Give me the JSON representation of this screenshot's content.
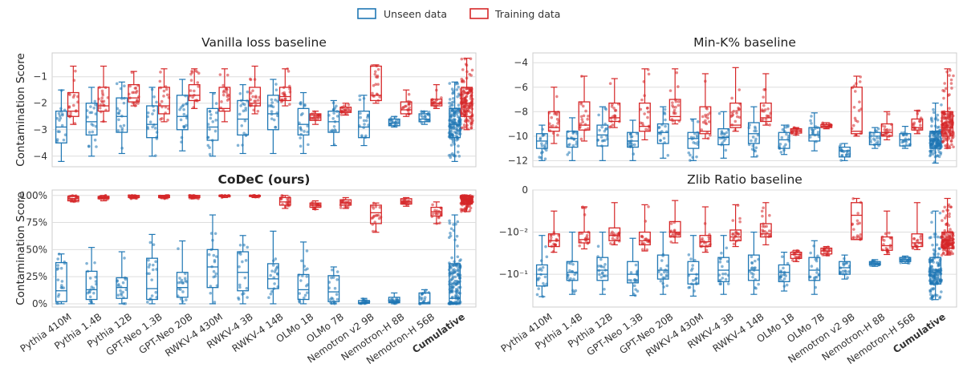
{
  "legend": {
    "unseen_label": "Unseen data",
    "training_label": "Training data",
    "colors": {
      "unseen": "#1f77b4",
      "training": "#d62728"
    }
  },
  "models": [
    "Pythia 410M",
    "Pythia 1.4B",
    "Pythia 12B",
    "GPT-Neo 1.3B",
    "GPT-Neo 20B",
    "RWKV-4 430M",
    "RWKV-4 3B",
    "RWKV-4 14B",
    "OLMo 1B",
    "OLMo 7B",
    "Nemotron v2 9B",
    "Nemotron-H 8B",
    "Nemotron-H 56B",
    "Cumulative"
  ],
  "chart_data": [
    {
      "type": "box",
      "title": "Vanilla loss baseline",
      "title_bold": false,
      "ylabel": "Contamination Score",
      "scale": "linear",
      "ylim": [
        -4.4,
        -0.1
      ],
      "yticks": [
        -4,
        -3,
        -2,
        -1
      ],
      "ytick_labels": [
        "−4",
        "−3",
        "−2",
        "−1"
      ],
      "categories": [
        "Pythia 410M",
        "Pythia 1.4B",
        "Pythia 12B",
        "GPT-Neo 1.3B",
        "GPT-Neo 20B",
        "RWKV-4 430M",
        "RWKV-4 3B",
        "RWKV-4 14B",
        "OLMo 1B",
        "OLMo 7B",
        "Nemotron v2 9B",
        "Nemotron-H 8B",
        "Nemotron-H 56B",
        "Cumulative"
      ],
      "series": [
        {
          "name": "Unseen data",
          "stats": [
            [
              -4.2,
              -3.5,
              -2.9,
              -2.3,
              -1.5
            ],
            [
              -4.0,
              -3.2,
              -2.7,
              -2.0,
              -1.4
            ],
            [
              -3.9,
              -3.1,
              -2.5,
              -1.8,
              -1.2
            ],
            [
              -4.0,
              -3.3,
              -2.8,
              -2.1,
              -1.4
            ],
            [
              -3.8,
              -3.0,
              -2.5,
              -1.7,
              -1.1
            ],
            [
              -4.0,
              -3.4,
              -2.9,
              -2.2,
              -1.6
            ],
            [
              -3.9,
              -3.2,
              -2.6,
              -1.9,
              -1.3
            ],
            [
              -3.9,
              -3.0,
              -2.4,
              -1.7,
              -1.1
            ],
            [
              -3.9,
              -3.2,
              -2.8,
              -2.2,
              -1.6
            ],
            [
              -3.6,
              -3.1,
              -2.7,
              -2.3,
              -1.9
            ],
            [
              -3.6,
              -3.3,
              -2.9,
              -2.3,
              -1.7
            ],
            [
              -2.9,
              -2.85,
              -2.75,
              -2.6,
              -2.5
            ],
            [
              -2.8,
              -2.7,
              -2.6,
              -2.4,
              -2.3
            ],
            [
              -4.2,
              -3.3,
              -2.8,
              -2.2,
              -1.2
            ]
          ]
        },
        {
          "name": "Training data",
          "stats": [
            [
              -2.8,
              -2.5,
              -2.3,
              -1.6,
              -0.6
            ],
            [
              -2.7,
              -2.3,
              -2.1,
              -1.4,
              -0.6
            ],
            [
              -2.1,
              -1.95,
              -1.8,
              -1.3,
              -0.8
            ],
            [
              -2.7,
              -2.4,
              -2.1,
              -1.4,
              -0.7
            ],
            [
              -2.2,
              -1.9,
              -1.7,
              -1.3,
              -0.7
            ],
            [
              -2.7,
              -2.3,
              -2.2,
              -1.4,
              -0.7
            ],
            [
              -2.4,
              -2.1,
              -2.0,
              -1.4,
              -0.6
            ],
            [
              -2.1,
              -1.9,
              -1.75,
              -1.4,
              -0.7
            ],
            [
              -2.8,
              -2.65,
              -2.55,
              -2.4,
              -2.3
            ],
            [
              -2.45,
              -2.35,
              -2.3,
              -2.15,
              -2.0
            ],
            [
              -2.0,
              -1.9,
              -1.7,
              -0.6,
              -0.55
            ],
            [
              -2.5,
              -2.4,
              -2.25,
              -1.95,
              -1.5
            ],
            [
              -2.2,
              -2.1,
              -2.0,
              -1.85,
              -1.3
            ],
            [
              -3.0,
              -2.5,
              -2.0,
              -1.4,
              -0.3
            ]
          ]
        }
      ]
    },
    {
      "type": "box",
      "title": "Min-K% baseline",
      "title_bold": false,
      "ylabel": "",
      "scale": "linear",
      "ylim": [
        -12.5,
        -3.2
      ],
      "yticks": [
        -12,
        -10,
        -8,
        -6,
        -4
      ],
      "ytick_labels": [
        "−12",
        "−10",
        "−8",
        "−6",
        "−4"
      ],
      "categories": [
        "Pythia 410M",
        "Pythia 1.4B",
        "Pythia 12B",
        "GPT-Neo 1.3B",
        "GPT-Neo 20B",
        "RWKV-4 430M",
        "RWKV-4 3B",
        "RWKV-4 14B",
        "OLMo 1B",
        "OLMo 7B",
        "Nemotron v2 9B",
        "Nemotron-H 8B",
        "Nemotron-H 56B",
        "Cumulative"
      ],
      "series": [
        {
          "name": "Unseen data",
          "stats": [
            [
              -12.0,
              -11.0,
              -10.4,
              -9.8,
              -9.1
            ],
            [
              -12.0,
              -10.9,
              -10.2,
              -9.6,
              -8.5
            ],
            [
              -12.0,
              -10.8,
              -9.9,
              -9.1,
              -7.6
            ],
            [
              -12.0,
              -10.9,
              -10.4,
              -9.7,
              -8.7
            ],
            [
              -11.8,
              -10.6,
              -9.7,
              -9.0,
              -7.6
            ],
            [
              -12.0,
              -11.0,
              -10.2,
              -9.7,
              -8.6
            ],
            [
              -11.8,
              -10.7,
              -10.1,
              -9.4,
              -8.0
            ],
            [
              -11.7,
              -10.6,
              -9.8,
              -8.9,
              -7.6
            ],
            [
              -11.5,
              -11.0,
              -10.3,
              -9.7,
              -9.1
            ],
            [
              -11.2,
              -10.4,
              -9.9,
              -9.3,
              -8.1
            ],
            [
              -12.0,
              -11.7,
              -11.2,
              -10.9,
              -10.6
            ],
            [
              -11.0,
              -10.7,
              -10.0,
              -9.7,
              -9.3
            ],
            [
              -11.0,
              -10.8,
              -10.3,
              -9.8,
              -9.2
            ],
            [
              -12.2,
              -11.0,
              -10.4,
              -9.6,
              -7.3
            ]
          ]
        },
        {
          "name": "Training data",
          "stats": [
            [
              -10.6,
              -9.6,
              -9.3,
              -8.0,
              -6.0
            ],
            [
              -10.4,
              -9.5,
              -9.1,
              -7.2,
              -5.1
            ],
            [
              -9.3,
              -8.8,
              -8.5,
              -7.3,
              -5.3
            ],
            [
              -10.3,
              -9.6,
              -9.2,
              -7.3,
              -4.5
            ],
            [
              -9.0,
              -8.7,
              -8.4,
              -7.0,
              -4.5
            ],
            [
              -10.2,
              -9.8,
              -9.6,
              -7.6,
              -4.9
            ],
            [
              -9.6,
              -9.3,
              -9.1,
              -7.3,
              -4.4
            ],
            [
              -9.1,
              -8.8,
              -8.5,
              -7.3,
              -4.9
            ],
            [
              -9.9,
              -9.75,
              -9.6,
              -9.4,
              -9.3
            ],
            [
              -9.4,
              -9.3,
              -9.2,
              -9.05,
              -8.9
            ],
            [
              -10.0,
              -9.8,
              -9.6,
              -6.0,
              -5.1
            ],
            [
              -10.3,
              -10.0,
              -9.7,
              -9.0,
              -8.0
            ],
            [
              -9.8,
              -9.5,
              -9.3,
              -8.6,
              -7.9
            ],
            [
              -11.0,
              -10.0,
              -9.3,
              -8.0,
              -4.5
            ]
          ]
        }
      ]
    },
    {
      "type": "box",
      "title": "CoDeC (ours)",
      "title_bold": true,
      "ylabel": "Contamination Score",
      "scale": "linear",
      "ylim": [
        -3,
        105
      ],
      "yticks": [
        0,
        25,
        50,
        75,
        100
      ],
      "ytick_labels": [
        "0%",
        "25%",
        "50%",
        "75%",
        "100%"
      ],
      "categories": [
        "Pythia 410M",
        "Pythia 1.4B",
        "Pythia 12B",
        "GPT-Neo 1.3B",
        "GPT-Neo 20B",
        "RWKV-4 430M",
        "RWKV-4 3B",
        "RWKV-4 14B",
        "OLMo 1B",
        "OLMo 7B",
        "Nemotron v2 9B",
        "Nemotron-H 8B",
        "Nemotron-H 56B",
        "Cumulative"
      ],
      "series": [
        {
          "name": "Unseen data",
          "stats": [
            [
              0,
              2,
              12,
              38,
              46
            ],
            [
              0,
              4,
              13,
              30,
              52
            ],
            [
              0,
              5,
              15,
              24,
              48
            ],
            [
              0,
              4,
              14,
              42,
              64
            ],
            [
              0,
              6,
              15,
              29,
              58
            ],
            [
              0,
              15,
              34,
              50,
              82
            ],
            [
              0,
              12,
              29,
              48,
              63
            ],
            [
              0,
              14,
              23,
              37,
              67
            ],
            [
              0,
              4,
              13,
              27,
              57
            ],
            [
              0,
              2,
              11,
              26,
              34
            ],
            [
              0,
              0.5,
              1,
              3,
              5
            ],
            [
              0,
              1,
              2,
              6,
              10
            ],
            [
              0,
              0,
              1,
              10,
              13
            ],
            [
              0,
              0.5,
              5,
              37,
              82
            ]
          ]
        },
        {
          "name": "Training data",
          "stats": [
            [
              94,
              95,
              97,
              99,
              100
            ],
            [
              95,
              97,
              98,
              99,
              100
            ],
            [
              97,
              98,
              99,
              100,
              100
            ],
            [
              97,
              98,
              99,
              100,
              100
            ],
            [
              97,
              98,
              99,
              100,
              100
            ],
            [
              98,
              99,
              100,
              100,
              100
            ],
            [
              98,
              99,
              100,
              100,
              100
            ],
            [
              88,
              91,
              94,
              98,
              100
            ],
            [
              87,
              89,
              91,
              93,
              95
            ],
            [
              88,
              91,
              93,
              96,
              98
            ],
            [
              66,
              74,
              84,
              91,
              93
            ],
            [
              90,
              92,
              94,
              97,
              98
            ],
            [
              74,
              81,
              85,
              89,
              94
            ],
            [
              85,
              92,
              96,
              99,
              100
            ]
          ]
        }
      ]
    },
    {
      "type": "box",
      "title": "Zlib Ratio baseline",
      "title_bold": false,
      "ylabel": "",
      "scale": "symlog",
      "ylim": [
        -0.6,
        0
      ],
      "yticks": [
        -0.1,
        -0.01,
        0
      ],
      "ytick_labels": [
        "−10⁻¹",
        "−10⁻²",
        "0"
      ],
      "categories": [
        "Pythia 410M",
        "Pythia 1.4B",
        "Pythia 12B",
        "GPT-Neo 1.3B",
        "GPT-Neo 20B",
        "RWKV-4 430M",
        "RWKV-4 3B",
        "RWKV-4 14B",
        "OLMo 1B",
        "OLMo 7B",
        "Nemotron v2 9B",
        "Nemotron-H 8B",
        "Nemotron-H 56B",
        "Cumulative"
      ],
      "series": [
        {
          "name": "Unseen data",
          "stats": [
            [
              -0.34,
              -0.19,
              -0.1,
              -0.06,
              -0.012
            ],
            [
              -0.3,
              -0.14,
              -0.09,
              -0.05,
              -0.01
            ],
            [
              -0.3,
              -0.14,
              -0.08,
              -0.04,
              -0.01
            ],
            [
              -0.32,
              -0.16,
              -0.1,
              -0.05,
              -0.014
            ],
            [
              -0.3,
              -0.13,
              -0.08,
              -0.035,
              -0.01
            ],
            [
              -0.33,
              -0.17,
              -0.1,
              -0.05,
              -0.012
            ],
            [
              -0.3,
              -0.15,
              -0.08,
              -0.04,
              -0.012
            ],
            [
              -0.3,
              -0.14,
              -0.08,
              -0.035,
              -0.01
            ],
            [
              -0.25,
              -0.15,
              -0.09,
              -0.06,
              -0.03
            ],
            [
              -0.3,
              -0.14,
              -0.08,
              -0.04,
              -0.016
            ],
            [
              -0.13,
              -0.1,
              -0.07,
              -0.05,
              -0.035
            ],
            [
              -0.065,
              -0.06,
              -0.055,
              -0.05,
              -0.045
            ],
            [
              -0.055,
              -0.05,
              -0.045,
              -0.04,
              -0.037
            ],
            [
              -0.4,
              -0.17,
              -0.09,
              -0.04,
              -0.005
            ]
          ]
        },
        {
          "name": "Training data",
          "stats": [
            [
              -0.03,
              -0.022,
              -0.016,
              -0.011,
              -0.005
            ],
            [
              -0.025,
              -0.018,
              -0.015,
              -0.01,
              -0.004
            ],
            [
              -0.02,
              -0.016,
              -0.012,
              -0.009,
              -0.003
            ],
            [
              -0.028,
              -0.02,
              -0.016,
              -0.01,
              -0.0035
            ],
            [
              -0.018,
              -0.013,
              -0.01,
              -0.0075,
              -0.0025
            ],
            [
              -0.03,
              -0.022,
              -0.017,
              -0.012,
              -0.004
            ],
            [
              -0.022,
              -0.016,
              -0.013,
              -0.0095,
              -0.0035
            ],
            [
              -0.02,
              -0.013,
              -0.011,
              -0.008,
              -0.003
            ],
            [
              -0.05,
              -0.042,
              -0.034,
              -0.03,
              -0.027
            ],
            [
              -0.036,
              -0.033,
              -0.028,
              -0.024,
              -0.022
            ],
            [
              -0.015,
              -0.015,
              -0.006,
              -0.003,
              -0.002
            ],
            [
              -0.034,
              -0.027,
              -0.021,
              -0.013,
              -0.005
            ],
            [
              -0.026,
              -0.022,
              -0.018,
              -0.011,
              -0.003
            ],
            [
              -0.035,
              -0.024,
              -0.016,
              -0.01,
              -0.002
            ]
          ]
        }
      ]
    }
  ]
}
